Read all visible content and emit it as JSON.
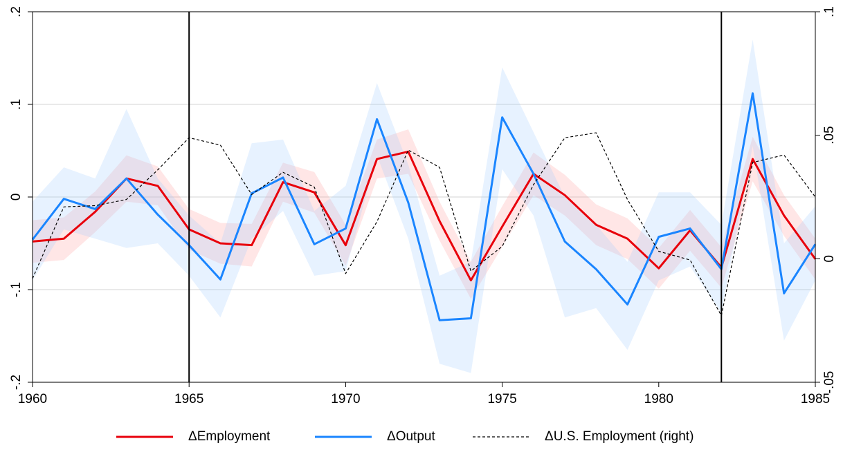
{
  "chart_data": {
    "type": "line",
    "x": [
      1960,
      1961,
      1962,
      1963,
      1964,
      1965,
      1966,
      1967,
      1968,
      1969,
      1970,
      1971,
      1972,
      1973,
      1974,
      1975,
      1976,
      1977,
      1978,
      1979,
      1980,
      1981,
      1982,
      1983,
      1984,
      1985
    ],
    "xlim": [
      1960,
      1985
    ],
    "xticks": [
      1960,
      1965,
      1970,
      1975,
      1980,
      1985
    ],
    "ylim": [
      -0.2,
      0.2
    ],
    "yticks": [
      {
        "value": -0.2,
        "label": "-.2"
      },
      {
        "value": -0.1,
        "label": "-.1"
      },
      0,
      {
        "value": 0.1,
        "label": ".1"
      },
      {
        "value": 0.2,
        "label": ".2"
      }
    ],
    "y2lim": [
      -0.05,
      0.1
    ],
    "y2ticks": [
      {
        "value": -0.05,
        "label": "-.05"
      },
      0,
      {
        "value": 0.05,
        "label": ".05"
      },
      {
        "value": 0.1,
        "label": ".1"
      }
    ],
    "grid": true,
    "vlines": [
      1965,
      1982
    ],
    "legend": "bottom",
    "series": [
      {
        "name": "ΔEmployment",
        "color": "#e8000b",
        "band_color": "#ff9a9a",
        "values": [
          -0.048,
          -0.045,
          -0.016,
          0.02,
          0.012,
          -0.035,
          -0.05,
          -0.052,
          0.016,
          0.005,
          -0.052,
          0.041,
          0.049,
          -0.026,
          -0.09,
          -0.032,
          0.025,
          0.002,
          -0.03,
          -0.045,
          -0.077,
          -0.036,
          -0.076,
          0.041,
          -0.02,
          -0.067
        ],
        "upper": [
          -0.025,
          -0.022,
          0.006,
          0.045,
          0.033,
          -0.013,
          -0.028,
          -0.029,
          0.037,
          0.027,
          -0.03,
          0.062,
          0.073,
          -0.005,
          -0.07,
          -0.01,
          0.048,
          0.024,
          -0.008,
          -0.023,
          -0.055,
          -0.014,
          -0.054,
          0.065,
          0.002,
          -0.045
        ],
        "lower": [
          -0.071,
          -0.068,
          -0.038,
          -0.005,
          -0.009,
          -0.057,
          -0.072,
          -0.075,
          -0.005,
          -0.017,
          -0.074,
          0.02,
          0.025,
          -0.047,
          -0.11,
          -0.054,
          0.002,
          -0.02,
          -0.052,
          -0.067,
          -0.099,
          -0.058,
          -0.098,
          0.017,
          -0.042,
          -0.089
        ]
      },
      {
        "name": "ΔOutput",
        "color": "#1a85ff",
        "band_color": "#9fcdff",
        "values": [
          -0.046,
          -0.002,
          -0.013,
          0.02,
          -0.019,
          -0.052,
          -0.089,
          0.004,
          0.021,
          -0.051,
          -0.034,
          0.084,
          -0.006,
          -0.133,
          -0.131,
          0.086,
          0.025,
          -0.048,
          -0.078,
          -0.116,
          -0.043,
          -0.034,
          -0.078,
          0.112,
          -0.104,
          -0.051
        ],
        "upper": [
          -0.005,
          0.032,
          0.02,
          0.095,
          0.02,
          -0.02,
          -0.05,
          0.058,
          0.062,
          -0.015,
          0.012,
          0.123,
          0.035,
          -0.085,
          -0.07,
          0.14,
          0.07,
          0.0,
          -0.03,
          -0.07,
          0.005,
          0.005,
          -0.03,
          0.17,
          -0.05,
          -0.01
        ],
        "lower": [
          -0.09,
          -0.035,
          -0.045,
          -0.055,
          -0.05,
          -0.085,
          -0.13,
          -0.045,
          -0.015,
          -0.085,
          -0.08,
          0.045,
          -0.045,
          -0.18,
          -0.19,
          0.03,
          -0.02,
          -0.13,
          -0.12,
          -0.165,
          -0.09,
          -0.075,
          -0.125,
          0.055,
          -0.155,
          -0.09
        ]
      },
      {
        "name": "ΔU.S. Employment (right)",
        "color": "#000000",
        "axis": "y2",
        "dashed": true,
        "values": [
          -0.008,
          0.021,
          0.0215,
          0.024,
          0.036,
          0.049,
          0.046,
          0.026,
          0.035,
          0.029,
          -0.006,
          0.015,
          0.044,
          0.037,
          -0.005,
          0.005,
          0.03,
          0.049,
          0.051,
          0.024,
          0.003,
          -0.0005,
          -0.023,
          0.039,
          0.042,
          0.025
        ]
      }
    ]
  }
}
